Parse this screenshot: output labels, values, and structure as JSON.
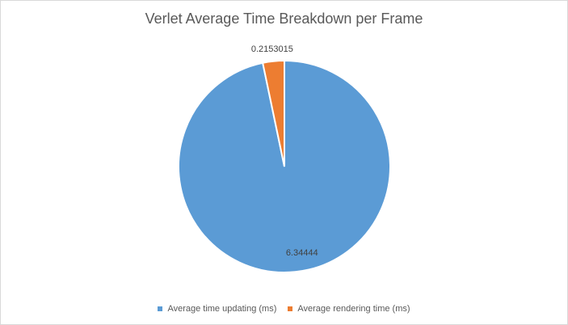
{
  "chart_data": {
    "type": "pie",
    "title": "Verlet Average Time Breakdown per Frame",
    "categories": [
      "Average time updating (ms)",
      "Average rendering time (ms)"
    ],
    "values": [
      6.34444,
      0.2153015
    ],
    "value_labels": [
      "6.34444",
      "0.2153015"
    ],
    "colors": [
      "#5b9bd5",
      "#ed7d31"
    ],
    "legend_position": "bottom"
  }
}
